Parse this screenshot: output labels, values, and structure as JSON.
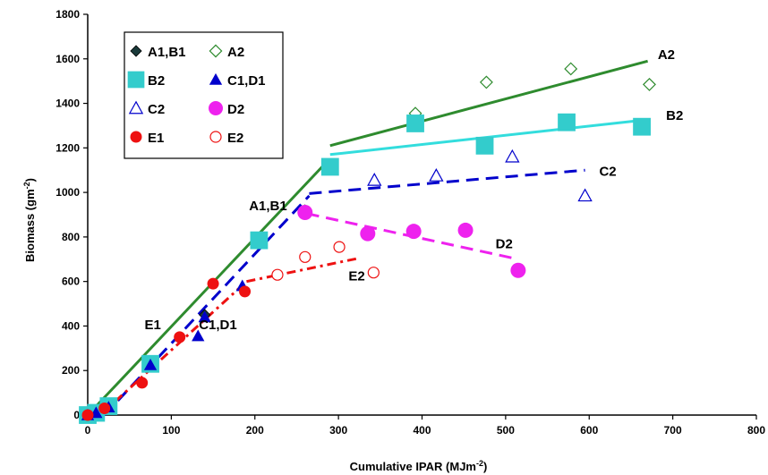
{
  "chart_data": {
    "type": "scatter",
    "xlabel": "Cumulative IPAR (MJm",
    "xlabel_sup": "-2",
    "xlabel_end": ")",
    "ylabel": "Biomass (gm",
    "ylabel_sup": "-2",
    "ylabel_end": ")",
    "xlim": [
      0,
      800
    ],
    "ylim": [
      0,
      1800
    ],
    "xticks": [
      0,
      100,
      200,
      300,
      400,
      500,
      600,
      700,
      800
    ],
    "yticks": [
      0,
      200,
      400,
      600,
      800,
      1000,
      1200,
      1400,
      1600,
      1800
    ],
    "grid": false,
    "legend_position": "top-left",
    "series": [
      {
        "name": "A1,B1",
        "marker": "diamond-filled",
        "color": "#1a3a3a",
        "points": [
          [
            0,
            0
          ],
          [
            10,
            10
          ],
          [
            25,
            40
          ],
          [
            75,
            230
          ],
          [
            140,
            450
          ],
          [
            205,
            785
          ],
          [
            260,
            920
          ]
        ]
      },
      {
        "name": "A2",
        "marker": "diamond-open",
        "color": "#2e8b2e",
        "points": [
          [
            392,
            1355
          ],
          [
            477,
            1495
          ],
          [
            578,
            1555
          ],
          [
            672,
            1485
          ]
        ]
      },
      {
        "name": "B2",
        "marker": "square-filled",
        "color": "#33cccc",
        "points": [
          [
            0,
            0
          ],
          [
            10,
            10
          ],
          [
            25,
            40
          ],
          [
            75,
            230
          ],
          [
            205,
            785
          ],
          [
            290,
            1115
          ],
          [
            392,
            1310
          ],
          [
            475,
            1210
          ],
          [
            573,
            1315
          ],
          [
            663,
            1295
          ]
        ]
      },
      {
        "name": "C1,D1",
        "marker": "triangle-filled",
        "color": "#0000cc",
        "points": [
          [
            0,
            0
          ],
          [
            10,
            10
          ],
          [
            25,
            35
          ],
          [
            75,
            225
          ],
          [
            132,
            355
          ],
          [
            140,
            440
          ],
          [
            185,
            580
          ]
        ]
      },
      {
        "name": "C2",
        "marker": "triangle-open",
        "color": "#0000cc",
        "points": [
          [
            343,
            1055
          ],
          [
            417,
            1075
          ],
          [
            508,
            1160
          ],
          [
            595,
            985
          ]
        ]
      },
      {
        "name": "D2",
        "marker": "circle-filled",
        "color": "#ee22ee",
        "points": [
          [
            260,
            910
          ],
          [
            335,
            815
          ],
          [
            390,
            825
          ],
          [
            452,
            830
          ],
          [
            515,
            650
          ]
        ]
      },
      {
        "name": "E1",
        "marker": "circle-filled",
        "color": "#ee1111",
        "points": [
          [
            0,
            0
          ],
          [
            20,
            30
          ],
          [
            65,
            145
          ],
          [
            110,
            350
          ],
          [
            150,
            590
          ],
          [
            188,
            555
          ]
        ]
      },
      {
        "name": "E2",
        "marker": "circle-open",
        "color": "#ee1111",
        "points": [
          [
            227,
            630
          ],
          [
            260,
            710
          ],
          [
            301,
            755
          ],
          [
            342,
            640
          ]
        ]
      }
    ],
    "fit_lines": [
      {
        "name": "A1,B1",
        "color": "#2e8b2e",
        "dash": "solid",
        "x": [
          0,
          288
        ],
        "y": [
          0,
          1145
        ]
      },
      {
        "name": "A2",
        "color": "#2e8b2e",
        "dash": "solid",
        "x": [
          290,
          670
        ],
        "y": [
          1210,
          1590
        ]
      },
      {
        "name": "B2",
        "color": "#33dddd",
        "dash": "solid",
        "x": [
          290,
          665
        ],
        "y": [
          1170,
          1325
        ]
      },
      {
        "name": "C1,D1",
        "color": "#0000cc",
        "dash": "dashed",
        "x": [
          20,
          265
        ],
        "y": [
          0,
          985
        ]
      },
      {
        "name": "C2",
        "color": "#0000cc",
        "dash": "dashed",
        "x": [
          265,
          595
        ],
        "y": [
          995,
          1100
        ]
      },
      {
        "name": "D2",
        "color": "#ee22ee",
        "dash": "dashed",
        "x": [
          262,
          515
        ],
        "y": [
          905,
          700
        ]
      },
      {
        "name": "E1",
        "color": "#ee1111",
        "dash": "dashdot",
        "x": [
          15,
          190
        ],
        "y": [
          0,
          600
        ]
      },
      {
        "name": "E2",
        "color": "#ee1111",
        "dash": "dashdot",
        "x": [
          190,
          325
        ],
        "y": [
          600,
          705
        ]
      }
    ],
    "annotations": [
      {
        "text": "A2",
        "x": 682,
        "y": 1600
      },
      {
        "text": "B2",
        "x": 692,
        "y": 1325
      },
      {
        "text": "C2",
        "x": 612,
        "y": 1075
      },
      {
        "text": "A1,B1",
        "x": 193,
        "y": 920
      },
      {
        "text": "D2",
        "x": 488,
        "y": 750
      },
      {
        "text": "E2",
        "x": 312,
        "y": 605
      },
      {
        "text": "E1",
        "x": 68,
        "y": 385
      },
      {
        "text": "C1,D1",
        "x": 133,
        "y": 385
      }
    ],
    "legend": [
      [
        "A1,B1",
        "A2"
      ],
      [
        "B2",
        "C1,D1"
      ],
      [
        "C2",
        "D2"
      ],
      [
        "E1",
        "E2"
      ]
    ]
  }
}
